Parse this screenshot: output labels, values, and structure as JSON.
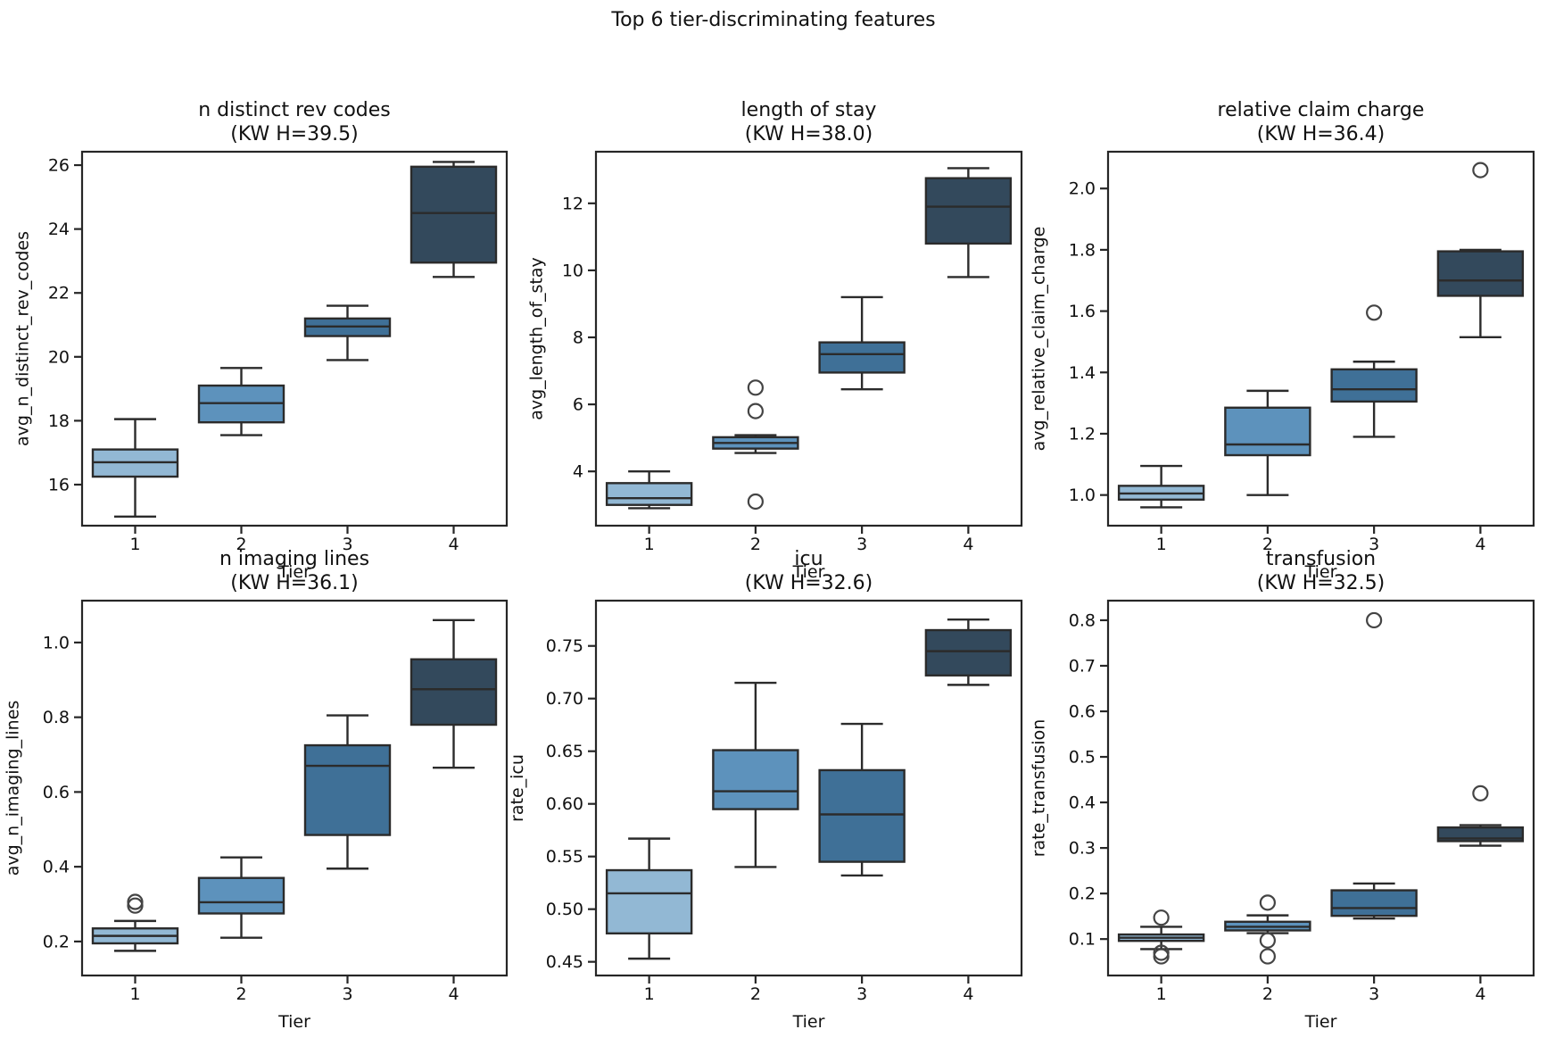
{
  "figure": {
    "suptitle": "Top 6 tier-discriminating features",
    "palette": {
      "tier_colors": [
        "#92b8d4",
        "#5d92bc",
        "#3f7097",
        "#33495c"
      ],
      "line_color": "#2b2b2b",
      "spine_color": "#262626",
      "flier_color": "#444444",
      "background": "#ffffff",
      "text_color": "#111111"
    }
  },
  "chart_data": [
    {
      "type": "box",
      "title": "n distinct rev codes",
      "subtitle": "(KW H=39.5)",
      "xlabel": "Tier",
      "ylabel": "avg_n_distinct_rev_codes",
      "categories": [
        "1",
        "2",
        "3",
        "4"
      ],
      "ylim": [
        14.715,
        26.42
      ],
      "ytick_values": [
        16,
        18,
        20,
        22,
        24,
        26
      ],
      "ytick_labels": [
        "16",
        "18",
        "20",
        "22",
        "24",
        "26"
      ],
      "series": [
        {
          "tier": "1",
          "whisker_low": 15.0,
          "q1": 16.25,
          "median": 16.7,
          "q3": 17.1,
          "whisker_high": 18.05,
          "outliers": []
        },
        {
          "tier": "2",
          "whisker_low": 17.55,
          "q1": 17.95,
          "median": 18.55,
          "q3": 19.1,
          "whisker_high": 19.65,
          "outliers": []
        },
        {
          "tier": "3",
          "whisker_low": 19.9,
          "q1": 20.65,
          "median": 20.95,
          "q3": 21.2,
          "whisker_high": 21.6,
          "outliers": []
        },
        {
          "tier": "4",
          "whisker_low": 22.5,
          "q1": 22.95,
          "median": 24.5,
          "q3": 25.95,
          "whisker_high": 26.1,
          "outliers": []
        }
      ]
    },
    {
      "type": "box",
      "title": "length of stay",
      "subtitle": "(KW H=38.0)",
      "xlabel": "Tier",
      "ylabel": "avg_length_of_stay",
      "categories": [
        "1",
        "2",
        "3",
        "4"
      ],
      "ylim": [
        2.38,
        13.54
      ],
      "ytick_values": [
        4,
        6,
        8,
        10,
        12
      ],
      "ytick_labels": [
        "4",
        "6",
        "8",
        "10",
        "12"
      ],
      "series": [
        {
          "tier": "1",
          "whisker_low": 2.9,
          "q1": 3.0,
          "median": 3.2,
          "q3": 3.65,
          "whisker_high": 4.0,
          "outliers": []
        },
        {
          "tier": "2",
          "whisker_low": 4.55,
          "q1": 4.68,
          "median": 4.85,
          "q3": 5.02,
          "whisker_high": 5.08,
          "outliers": [
            6.5,
            5.8,
            3.1
          ]
        },
        {
          "tier": "3",
          "whisker_low": 6.45,
          "q1": 6.95,
          "median": 7.5,
          "q3": 7.85,
          "whisker_high": 9.2,
          "outliers": []
        },
        {
          "tier": "4",
          "whisker_low": 9.8,
          "q1": 10.8,
          "median": 11.9,
          "q3": 12.75,
          "whisker_high": 13.05,
          "outliers": []
        }
      ]
    },
    {
      "type": "box",
      "title": "relative claim charge",
      "subtitle": "(KW H=36.4)",
      "xlabel": "Tier",
      "ylabel": "avg_relative_claim_charge",
      "categories": [
        "1",
        "2",
        "3",
        "4"
      ],
      "ylim": [
        0.9,
        2.12
      ],
      "ytick_values": [
        1.0,
        1.2,
        1.4,
        1.6,
        1.8,
        2.0
      ],
      "ytick_labels": [
        "1.0",
        "1.2",
        "1.4",
        "1.6",
        "1.8",
        "2.0"
      ],
      "series": [
        {
          "tier": "1",
          "whisker_low": 0.96,
          "q1": 0.985,
          "median": 1.005,
          "q3": 1.03,
          "whisker_high": 1.095,
          "outliers": []
        },
        {
          "tier": "2",
          "whisker_low": 1.0,
          "q1": 1.13,
          "median": 1.165,
          "q3": 1.285,
          "whisker_high": 1.34,
          "outliers": []
        },
        {
          "tier": "3",
          "whisker_low": 1.19,
          "q1": 1.305,
          "median": 1.345,
          "q3": 1.41,
          "whisker_high": 1.435,
          "outliers": [
            1.595
          ]
        },
        {
          "tier": "4",
          "whisker_low": 1.515,
          "q1": 1.65,
          "median": 1.7,
          "q3": 1.795,
          "whisker_high": 1.8,
          "outliers": [
            2.06
          ]
        }
      ]
    },
    {
      "type": "box",
      "title": "n imaging lines",
      "subtitle": "(KW H=36.1)",
      "xlabel": "Tier",
      "ylabel": "avg_n_imaging_lines",
      "categories": [
        "1",
        "2",
        "3",
        "4"
      ],
      "ylim": [
        0.109,
        1.112
      ],
      "ytick_values": [
        0.2,
        0.4,
        0.6,
        0.8,
        1.0
      ],
      "ytick_labels": [
        "0.2",
        "0.4",
        "0.6",
        "0.8",
        "1.0"
      ],
      "series": [
        {
          "tier": "1",
          "whisker_low": 0.175,
          "q1": 0.195,
          "median": 0.215,
          "q3": 0.235,
          "whisker_high": 0.255,
          "outliers": [
            0.296,
            0.306
          ]
        },
        {
          "tier": "2",
          "whisker_low": 0.21,
          "q1": 0.275,
          "median": 0.305,
          "q3": 0.37,
          "whisker_high": 0.425,
          "outliers": []
        },
        {
          "tier": "3",
          "whisker_low": 0.395,
          "q1": 0.485,
          "median": 0.67,
          "q3": 0.725,
          "whisker_high": 0.805,
          "outliers": []
        },
        {
          "tier": "4",
          "whisker_low": 0.665,
          "q1": 0.78,
          "median": 0.875,
          "q3": 0.955,
          "whisker_high": 1.06,
          "outliers": []
        }
      ]
    },
    {
      "type": "box",
      "title": "icu",
      "subtitle": "(KW H=32.6)",
      "xlabel": "Tier",
      "ylabel": "rate_icu",
      "categories": [
        "1",
        "2",
        "3",
        "4"
      ],
      "ylim": [
        0.437,
        0.793
      ],
      "ytick_values": [
        0.45,
        0.5,
        0.55,
        0.6,
        0.65,
        0.7,
        0.75
      ],
      "ytick_labels": [
        "0.45",
        "0.50",
        "0.55",
        "0.60",
        "0.65",
        "0.70",
        "0.75"
      ],
      "series": [
        {
          "tier": "1",
          "whisker_low": 0.453,
          "q1": 0.477,
          "median": 0.515,
          "q3": 0.537,
          "whisker_high": 0.567,
          "outliers": []
        },
        {
          "tier": "2",
          "whisker_low": 0.54,
          "q1": 0.595,
          "median": 0.612,
          "q3": 0.651,
          "whisker_high": 0.715,
          "outliers": []
        },
        {
          "tier": "3",
          "whisker_low": 0.532,
          "q1": 0.545,
          "median": 0.59,
          "q3": 0.632,
          "whisker_high": 0.676,
          "outliers": []
        },
        {
          "tier": "4",
          "whisker_low": 0.713,
          "q1": 0.722,
          "median": 0.745,
          "q3": 0.765,
          "whisker_high": 0.775,
          "outliers": []
        }
      ]
    },
    {
      "type": "box",
      "title": "transfusion",
      "subtitle": "(KW H=32.5)",
      "xlabel": "Tier",
      "ylabel": "rate_transfusion",
      "categories": [
        "1",
        "2",
        "3",
        "4"
      ],
      "ylim": [
        0.02,
        0.843
      ],
      "ytick_values": [
        0.1,
        0.2,
        0.3,
        0.4,
        0.5,
        0.6,
        0.7,
        0.8
      ],
      "ytick_labels": [
        "0.1",
        "0.2",
        "0.3",
        "0.4",
        "0.5",
        "0.6",
        "0.7",
        "0.8"
      ],
      "series": [
        {
          "tier": "1",
          "whisker_low": 0.078,
          "q1": 0.096,
          "median": 0.103,
          "q3": 0.11,
          "whisker_high": 0.127,
          "outliers": [
            0.147,
            0.07,
            0.062
          ]
        },
        {
          "tier": "2",
          "whisker_low": 0.113,
          "q1": 0.119,
          "median": 0.127,
          "q3": 0.138,
          "whisker_high": 0.152,
          "outliers": [
            0.18,
            0.097,
            0.062
          ]
        },
        {
          "tier": "3",
          "whisker_low": 0.145,
          "q1": 0.151,
          "median": 0.168,
          "q3": 0.207,
          "whisker_high": 0.222,
          "outliers": [
            0.8
          ]
        },
        {
          "tier": "4",
          "whisker_low": 0.305,
          "q1": 0.315,
          "median": 0.321,
          "q3": 0.345,
          "whisker_high": 0.35,
          "outliers": [
            0.42
          ]
        }
      ]
    }
  ]
}
